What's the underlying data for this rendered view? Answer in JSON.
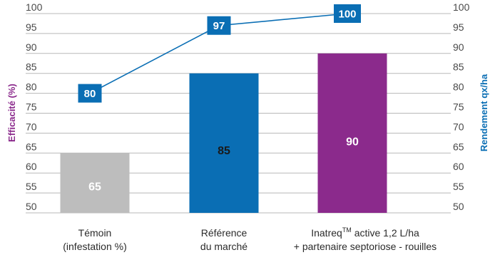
{
  "chart_data": {
    "type": "bar",
    "categories": [
      [
        "Témoin",
        "(infestation %)"
      ],
      [
        "Référence",
        "du marché"
      ],
      [
        "Inatreq",
        "TM",
        " active 1,2 L/ha",
        "+ partenaire septoriose - rouilles"
      ]
    ],
    "series": [
      {
        "axis": "left",
        "type": "bar",
        "values": [
          65,
          85,
          90
        ],
        "colors": [
          "#bdbdbd",
          "#0a6eb4",
          "#8b2a8c"
        ],
        "label_colors": [
          "#ffffff",
          "#1a1a1a",
          "#ffffff"
        ]
      },
      {
        "axis": "right",
        "type": "line",
        "values": [
          80,
          97,
          100
        ],
        "color": "#0a6eb4"
      }
    ],
    "ylabel_left": "Efficacité (%)",
    "ylabel_right": "Rendement qx/ha",
    "ylabel_left_color": "#8b2a8c",
    "ylabel_right_color": "#0a6eb4",
    "ylim": [
      50,
      100
    ],
    "yticks": [
      100,
      95,
      90,
      85,
      80,
      75,
      70,
      65,
      60,
      55,
      50
    ],
    "grid": true
  }
}
